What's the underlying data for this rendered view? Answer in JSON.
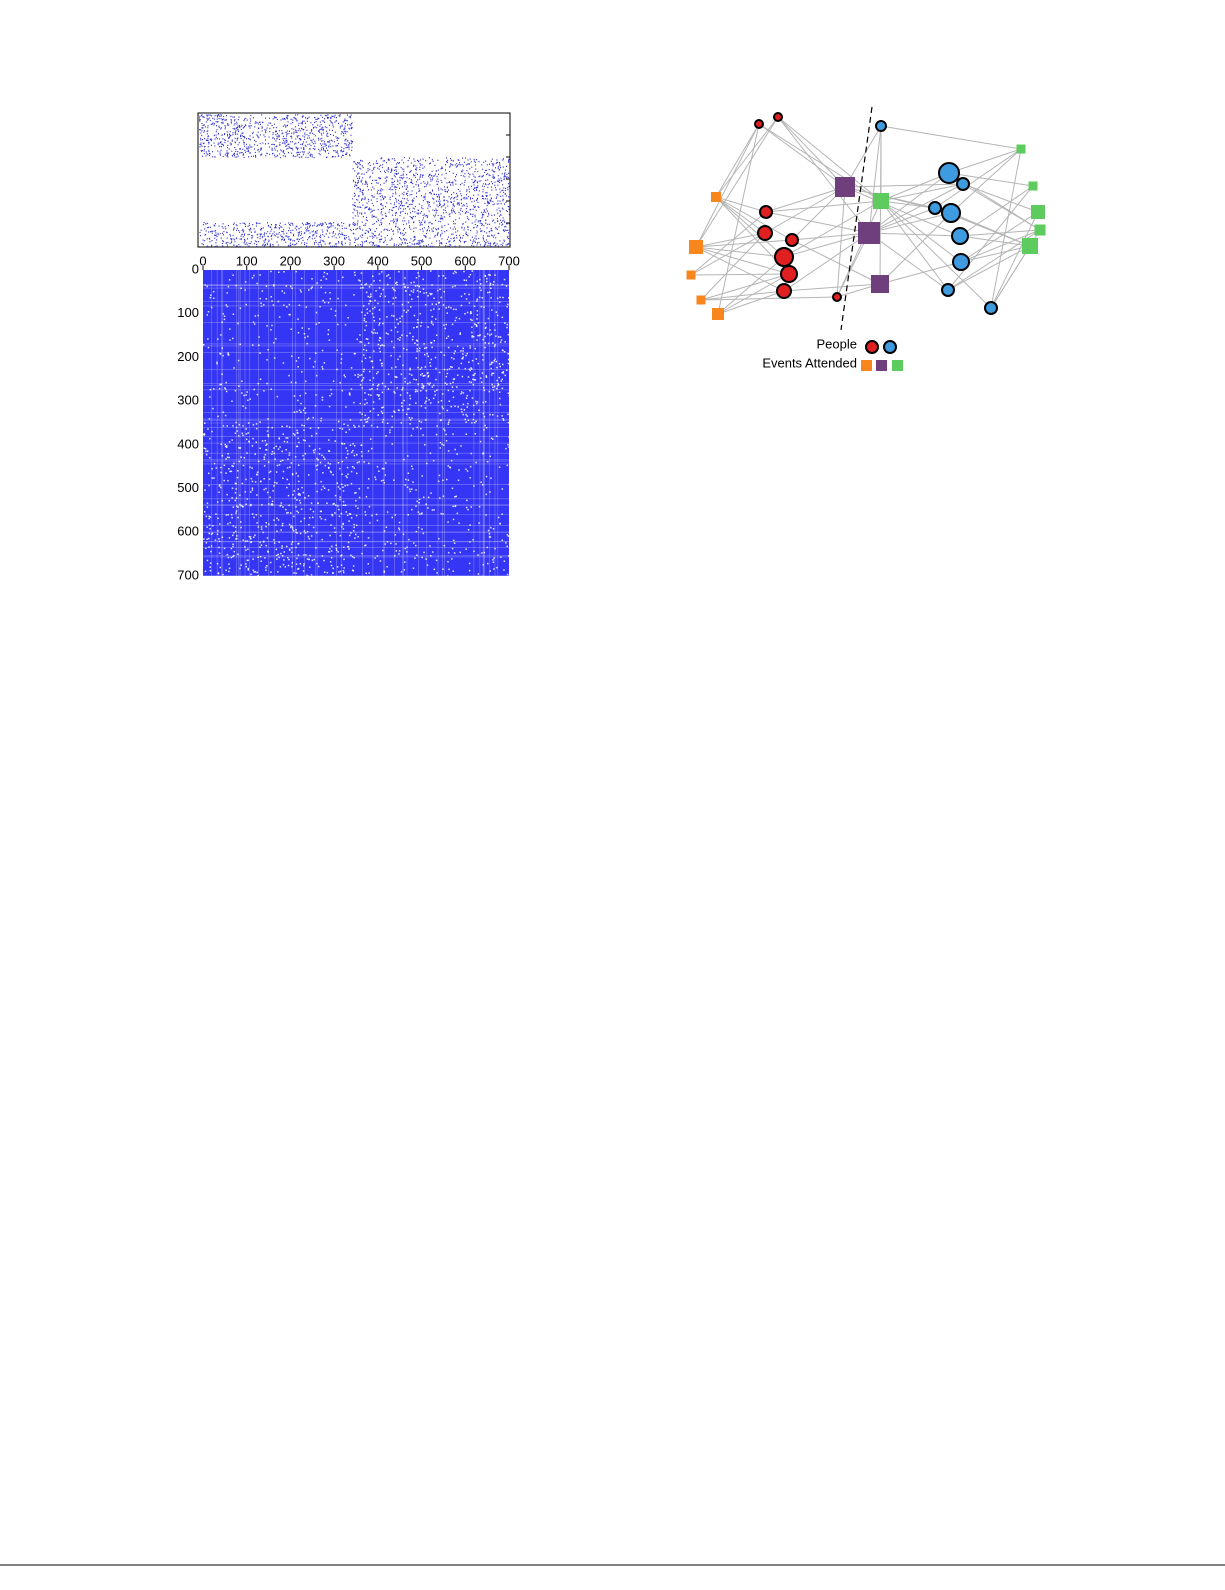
{
  "figure": {
    "matrix": {
      "xlim": [
        0,
        700
      ],
      "ylim": [
        0,
        700
      ],
      "xticks": [
        0,
        100,
        200,
        300,
        400,
        500,
        600,
        700
      ],
      "yticks": [
        0,
        100,
        200,
        300,
        400,
        500,
        600,
        700
      ]
    },
    "legend": {
      "people": "People",
      "events": "Events Attended"
    }
  }
}
